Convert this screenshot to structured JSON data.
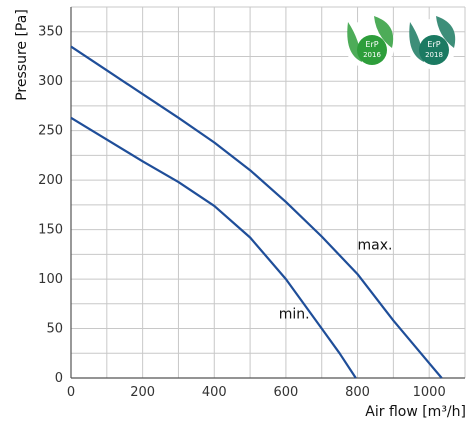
{
  "chart_data": {
    "type": "line",
    "title": "",
    "xlabel": "Air flow [m³/h]",
    "ylabel": "Pressure [Pa]",
    "xlim": [
      0,
      1100
    ],
    "ylim": [
      0,
      375
    ],
    "x_ticks": [
      0,
      200,
      400,
      600,
      800,
      1000
    ],
    "y_ticks": [
      0,
      50,
      100,
      150,
      200,
      250,
      300,
      350
    ],
    "x_grid_step": 100,
    "y_grid_step": 25,
    "grid": true,
    "series": [
      {
        "name": "max.",
        "color": "#1f4e99",
        "points": [
          [
            0,
            335
          ],
          [
            100,
            311
          ],
          [
            200,
            287
          ],
          [
            300,
            263
          ],
          [
            400,
            238
          ],
          [
            500,
            210
          ],
          [
            600,
            178
          ],
          [
            700,
            143
          ],
          [
            800,
            105
          ],
          [
            900,
            58
          ],
          [
            1000,
            15
          ],
          [
            1035,
            0
          ]
        ]
      },
      {
        "name": "min.",
        "color": "#1f4e99",
        "points": [
          [
            0,
            263
          ],
          [
            100,
            241
          ],
          [
            200,
            219
          ],
          [
            300,
            198
          ],
          [
            400,
            174
          ],
          [
            500,
            142
          ],
          [
            600,
            100
          ],
          [
            700,
            50
          ],
          [
            750,
            25
          ],
          [
            795,
            0
          ]
        ]
      }
    ]
  },
  "badges": [
    {
      "label": "ErP",
      "year": "2016",
      "color": "#2e9e3b"
    },
    {
      "label": "ErP",
      "year": "2018",
      "color": "#1b7a62"
    }
  ]
}
